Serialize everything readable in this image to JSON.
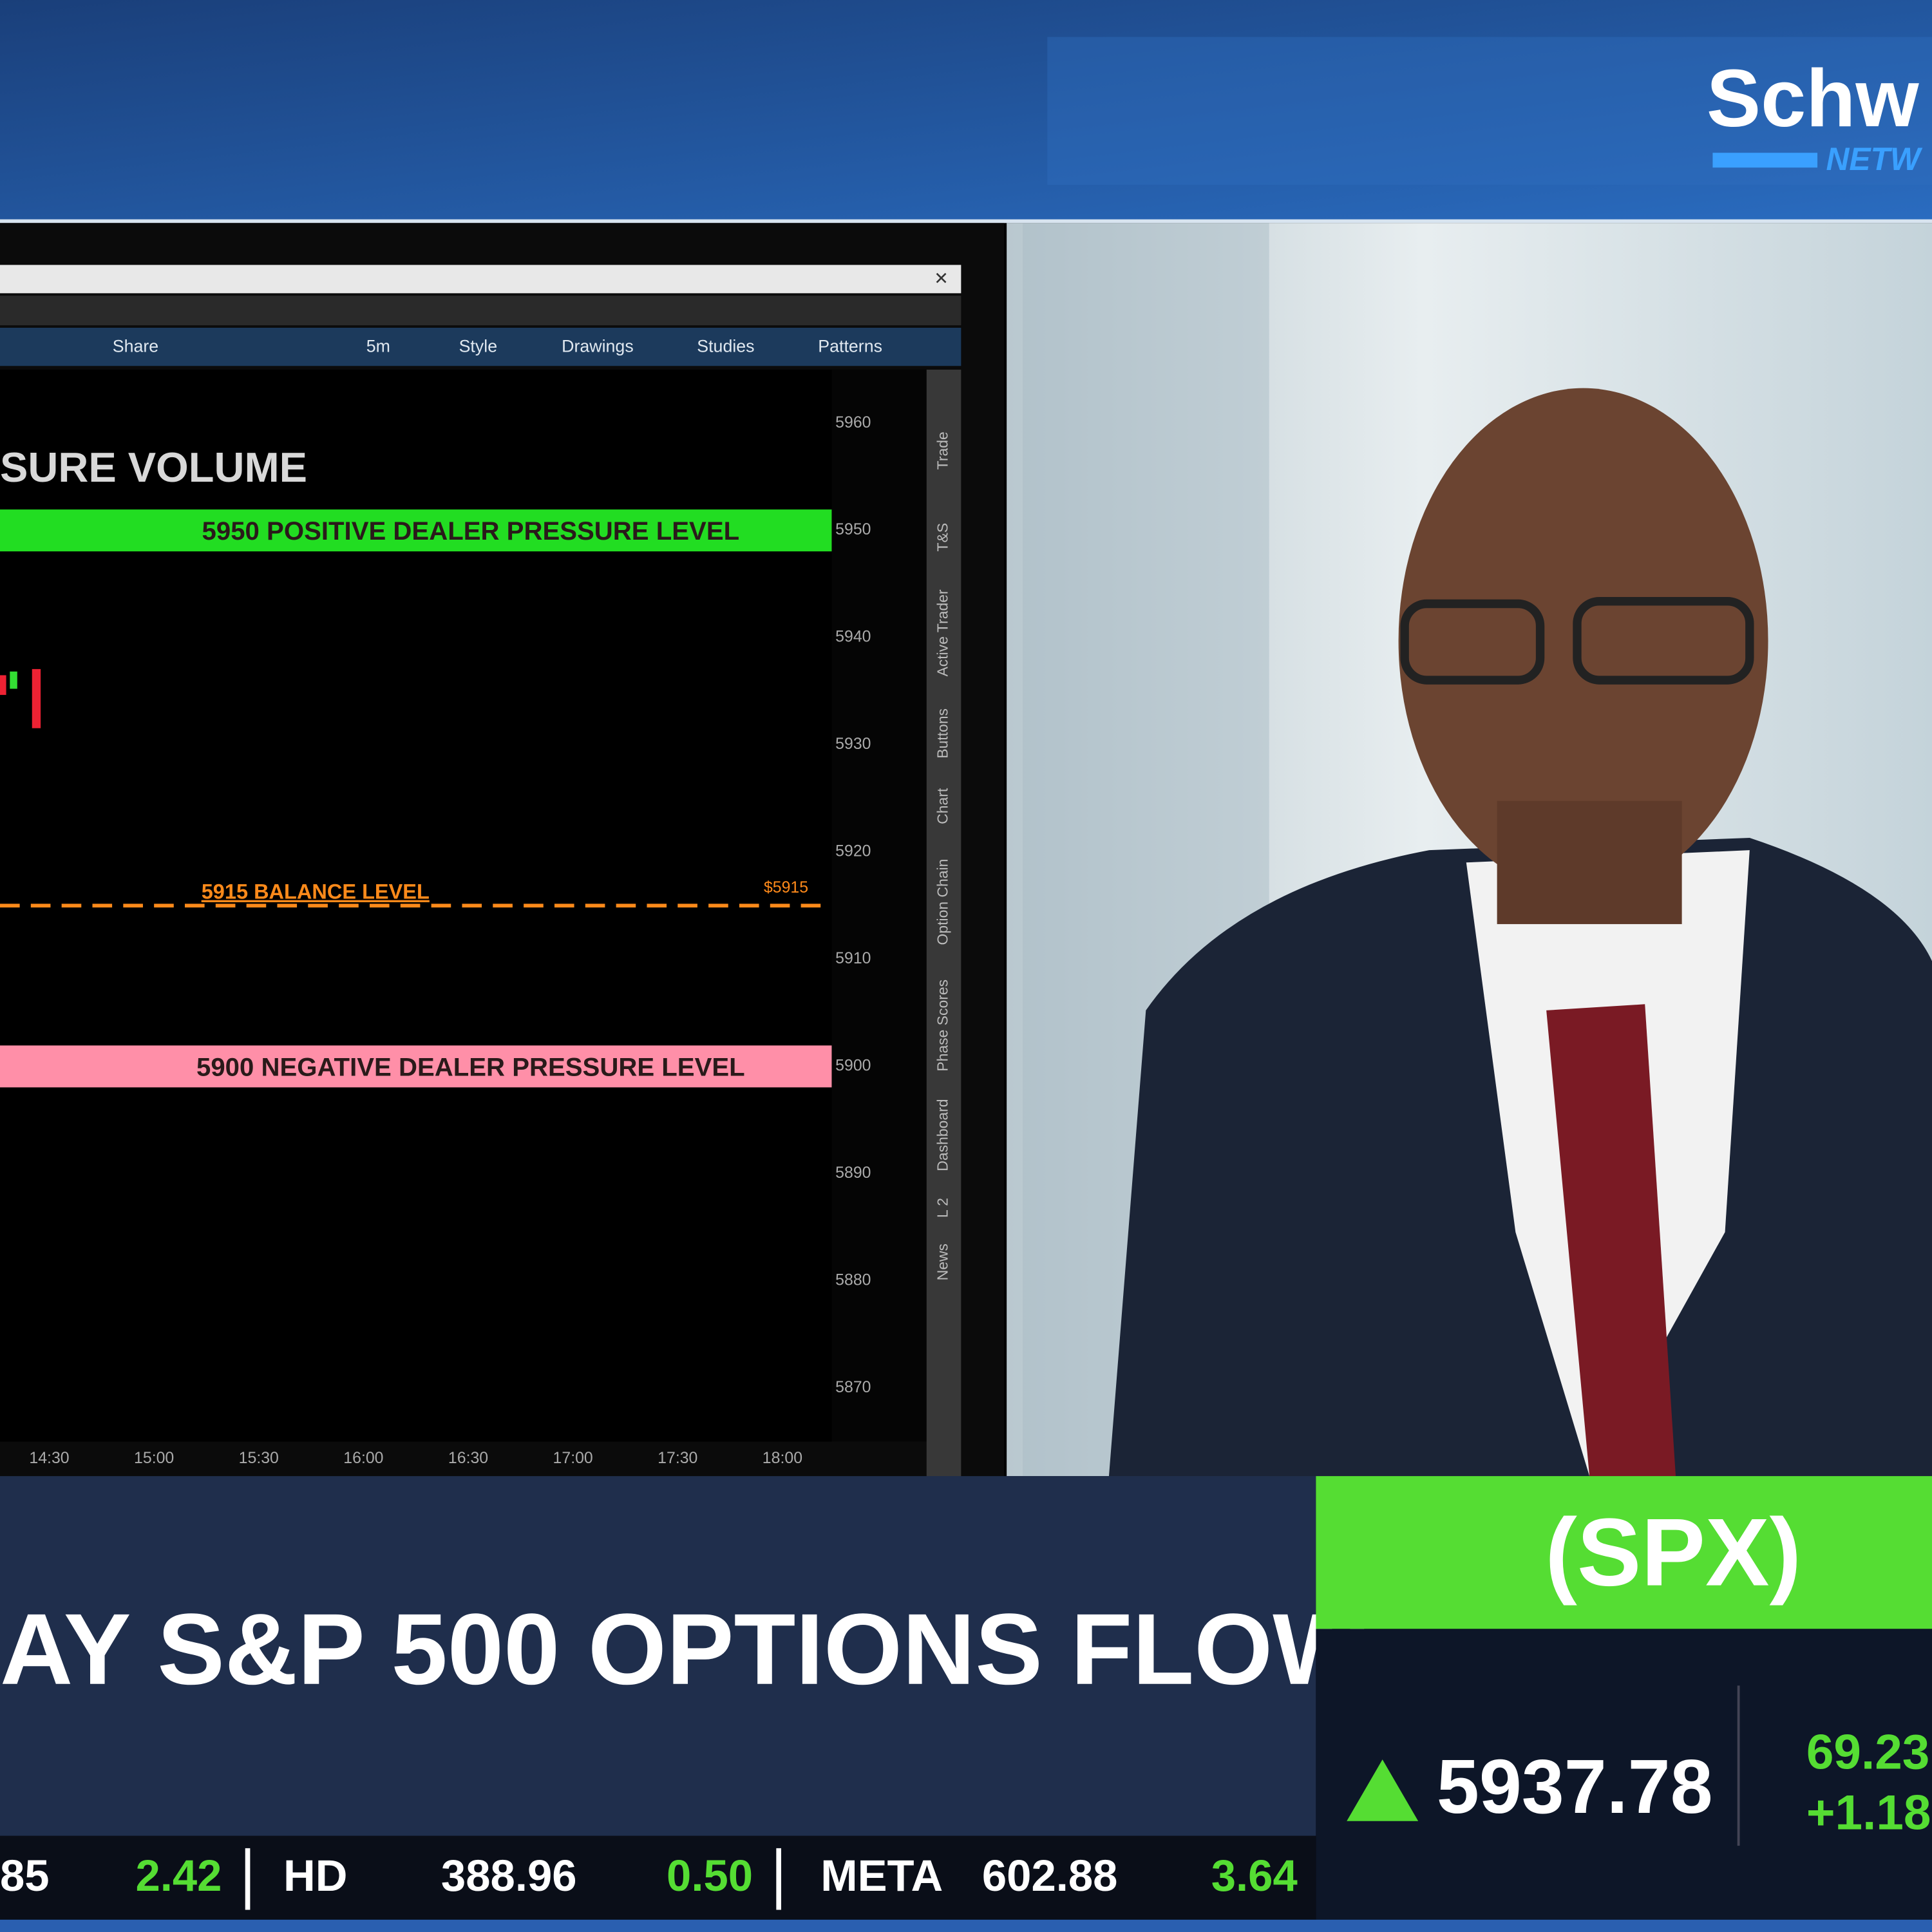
{
  "logo": {
    "name": "Schw",
    "tagline": "NETW"
  },
  "toolbar": {
    "items": [
      "Share",
      "5m",
      "Style",
      "Drawings",
      "Studies",
      "Patterns"
    ]
  },
  "chart": {
    "title": "SURE VOLUME",
    "ylim": [
      5865,
      5965
    ],
    "yticks": [
      5960,
      5950,
      5940,
      5930,
      5920,
      5910,
      5900,
      5890,
      5880,
      5870
    ],
    "xticks": [
      "14:30",
      "15:00",
      "15:30",
      "16:00",
      "16:30",
      "17:00",
      "17:30",
      "18:00"
    ],
    "levels": [
      {
        "value": 5950,
        "label": "5950 POSITIVE DEALER PRESSURE LEVEL",
        "color": "#22dd22",
        "style": "band"
      },
      {
        "value": 5915,
        "label": "5915 BALANCE LEVEL",
        "price_label": "$5915",
        "color": "#ff8a1a",
        "style": "dashed"
      },
      {
        "value": 5900,
        "label": "5900 NEGATIVE DEALER PRESSURE LEVEL",
        "color": "#ff8fa8",
        "style": "band"
      }
    ]
  },
  "side_tabs": [
    "Trade",
    "T&S",
    "Active Trader",
    "Buttons",
    "Chart",
    "Option Chain",
    "Phase Scores",
    "Dashboard",
    "L 2",
    "News"
  ],
  "banner": {
    "headline": "AY S&P 500 OPTIONS FLOW"
  },
  "quote": {
    "symbol": "(SPX)",
    "price": "5937.78",
    "change": "69.23",
    "percent": "+1.18"
  },
  "ticker": [
    {
      "price": "85",
      "change": "2.42"
    },
    {
      "symbol": "HD",
      "price": "388.96",
      "change": "0.50"
    },
    {
      "symbol": "META",
      "price": "602.88",
      "change": "3.64"
    }
  ]
}
